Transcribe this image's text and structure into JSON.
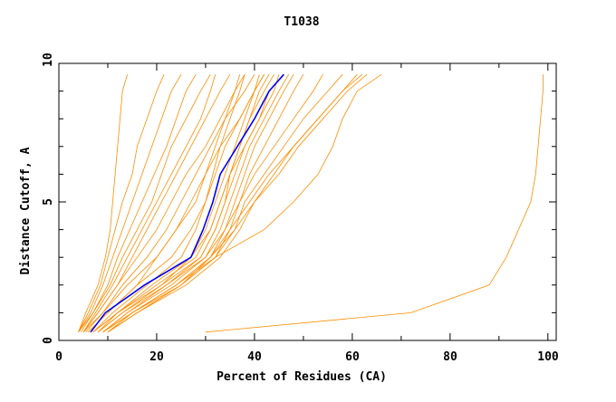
{
  "chart_data": {
    "type": "line",
    "title": "T1038",
    "xlabel": "Percent of Residues (CA)",
    "ylabel": "Distance Cutoff, A",
    "xlim": [
      0,
      101.7
    ],
    "ylim": [
      0,
      10
    ],
    "x_ticks": [
      "0",
      "20",
      "40",
      "60",
      "80",
      "100"
    ],
    "y_ticks": [
      "0",
      "5",
      "10"
    ],
    "grid": false,
    "colors": {
      "models": "#ff8c00",
      "highlight": "#0000ff"
    },
    "y_levels": [
      0.3,
      1,
      2,
      3,
      4,
      5,
      6,
      7,
      8,
      9,
      9.6
    ],
    "model_series_x": [
      [
        4,
        5.5,
        8,
        9.5,
        10.5,
        11,
        11.5,
        12,
        12.5,
        13,
        14
      ],
      [
        4,
        6,
        8.5,
        10,
        11.5,
        13,
        15,
        16,
        18,
        20,
        21.5
      ],
      [
        4,
        6.5,
        9,
        11,
        13,
        15,
        17,
        19,
        21,
        23,
        25
      ],
      [
        4,
        7,
        10,
        12,
        14.5,
        17,
        19.5,
        22,
        24,
        26,
        28
      ],
      [
        4.5,
        7,
        10.5,
        13,
        16,
        19,
        21,
        23,
        26,
        29,
        31
      ],
      [
        5,
        7.5,
        11,
        14,
        17,
        20,
        23,
        26,
        29,
        31,
        32
      ],
      [
        5,
        8,
        12,
        15,
        18,
        21,
        24,
        27,
        30,
        33,
        35
      ],
      [
        5,
        8,
        12,
        16,
        20,
        23,
        26,
        30,
        33,
        36,
        38
      ],
      [
        5.5,
        9,
        13,
        18,
        22,
        25,
        28,
        31,
        34,
        38,
        40
      ],
      [
        6,
        10,
        16,
        20,
        24,
        27,
        30,
        33,
        37,
        40,
        42
      ],
      [
        7,
        11,
        18,
        25,
        28,
        30,
        32,
        34,
        37,
        40,
        42
      ],
      [
        7,
        12,
        19,
        27,
        30,
        32,
        34,
        36,
        38,
        40,
        41
      ],
      [
        8,
        12,
        20,
        28,
        31,
        33,
        35,
        37,
        39,
        41,
        43
      ],
      [
        8,
        13,
        21,
        29,
        32,
        34,
        36,
        38,
        41,
        44,
        45
      ],
      [
        9,
        14,
        22,
        30,
        33,
        35,
        37,
        39,
        42,
        45,
        47
      ],
      [
        9,
        14,
        23,
        30,
        34,
        36,
        38,
        40,
        43,
        46,
        48
      ],
      [
        10,
        15,
        24,
        31,
        34,
        37,
        39,
        42,
        45,
        48,
        50
      ],
      [
        8,
        13,
        22,
        29,
        32,
        34,
        35,
        37,
        39,
        42,
        44
      ],
      [
        7,
        12,
        21,
        27,
        31,
        33,
        35,
        38,
        41,
        43,
        46
      ],
      [
        9,
        15,
        25,
        32,
        35,
        37,
        40,
        44,
        48,
        52,
        54
      ],
      [
        10,
        16,
        25,
        32,
        36,
        38,
        42,
        46,
        50,
        55,
        58
      ],
      [
        10,
        16,
        26,
        33,
        37,
        40,
        44,
        48,
        53,
        58,
        61
      ],
      [
        9,
        15,
        24,
        31,
        36,
        40,
        45,
        49,
        54,
        59,
        63
      ],
      [
        10,
        16,
        25,
        31,
        35,
        39,
        43,
        48,
        53,
        58,
        62
      ],
      [
        9,
        15,
        24,
        32,
        42,
        48,
        53,
        56,
        58,
        61,
        66
      ],
      [
        6,
        10,
        16,
        23,
        27,
        30,
        31.5,
        33,
        35,
        37,
        38
      ],
      [
        5,
        9,
        14,
        20,
        24,
        28,
        30,
        32,
        34,
        36,
        37
      ],
      [
        30,
        72,
        88,
        91.5,
        94,
        96.5,
        97.5,
        98,
        98.5,
        99,
        99
      ]
    ],
    "highlight_series_x": [
      6.5,
      9.5,
      17.5,
      27,
      29.5,
      31.5,
      33,
      36.5,
      40,
      43,
      46
    ]
  }
}
